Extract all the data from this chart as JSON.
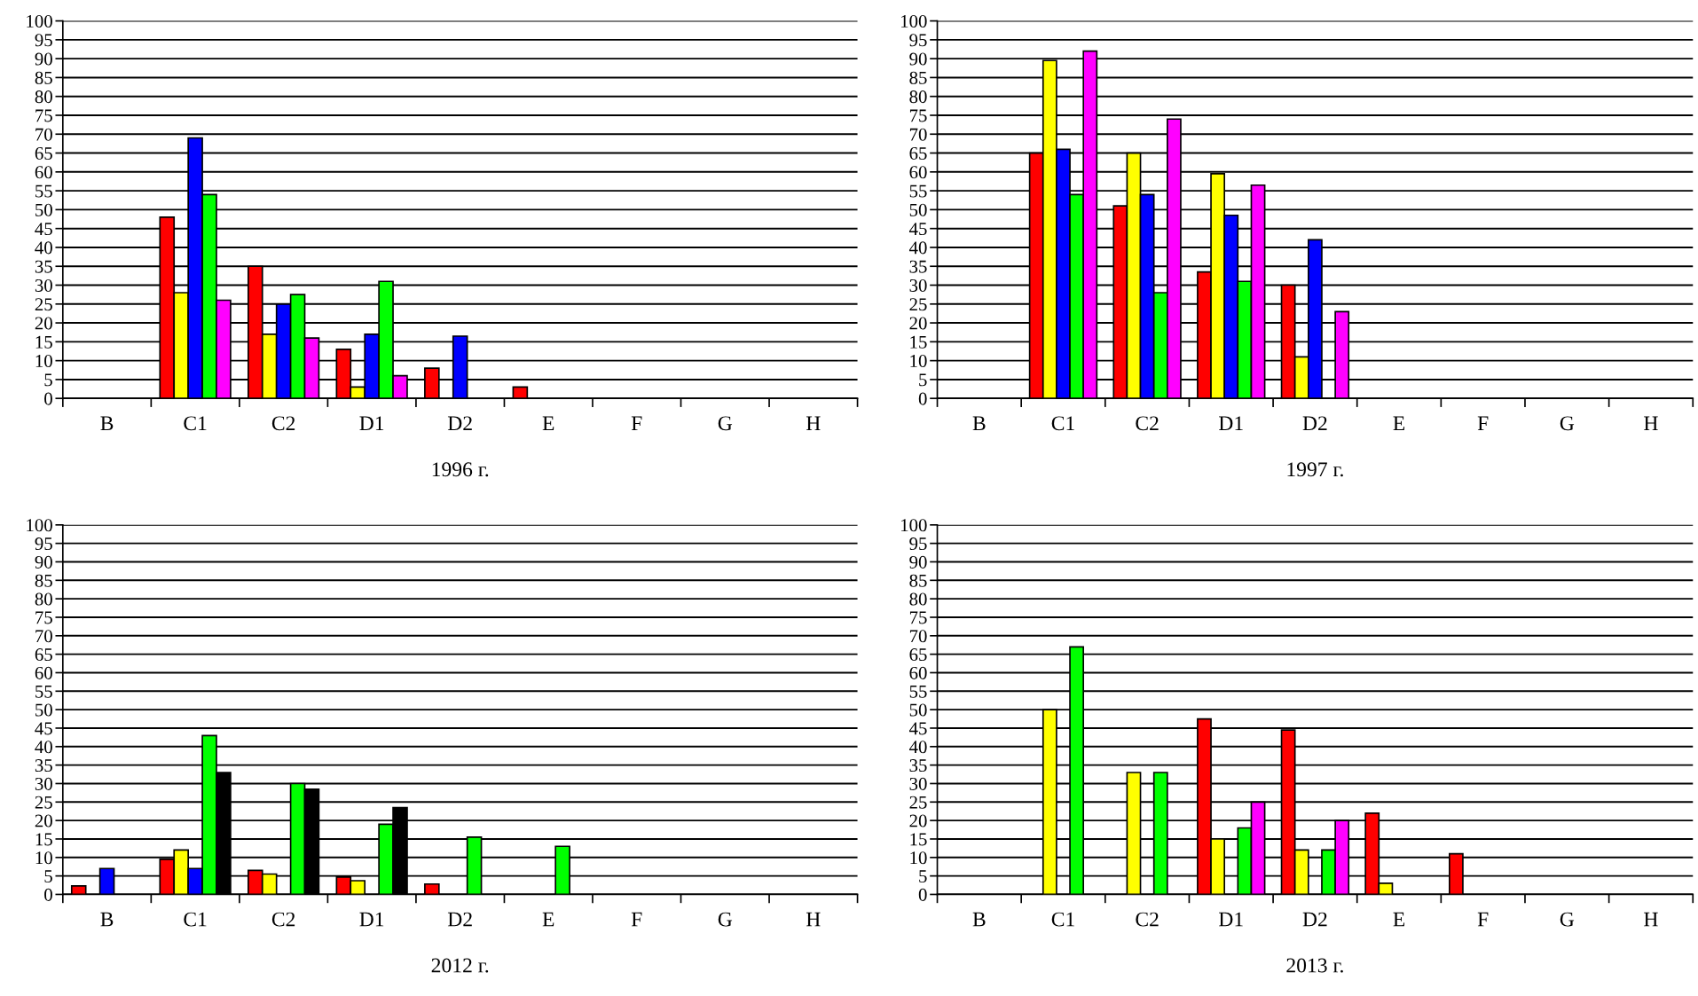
{
  "chart_data": [
    {
      "type": "bar",
      "xlabel": "1996 г.",
      "categories": [
        "B",
        "C1",
        "C2",
        "D1",
        "D2",
        "E",
        "F",
        "G",
        "H"
      ],
      "ylim": [
        0,
        100
      ],
      "yticks": [
        0,
        5,
        10,
        15,
        20,
        25,
        30,
        35,
        40,
        45,
        50,
        55,
        60,
        65,
        70,
        75,
        80,
        85,
        90,
        95,
        100
      ],
      "grid": "y",
      "legend": false,
      "series": [
        {
          "color": "#ff0000",
          "values": [
            null,
            48,
            35,
            13,
            8,
            3,
            null,
            null,
            null
          ]
        },
        {
          "color": "#ffff00",
          "values": [
            null,
            28,
            17,
            3,
            null,
            null,
            null,
            null,
            null
          ]
        },
        {
          "color": "#0000ff",
          "values": [
            null,
            69,
            25,
            17,
            16.5,
            null,
            null,
            null,
            null
          ]
        },
        {
          "color": "#00ff00",
          "values": [
            null,
            54,
            27.5,
            31,
            null,
            null,
            null,
            null,
            null
          ]
        },
        {
          "color": "#ff00ff",
          "values": [
            null,
            26,
            16,
            6,
            null,
            null,
            null,
            null,
            null
          ]
        }
      ]
    },
    {
      "type": "bar",
      "xlabel": "1997 г.",
      "categories": [
        "B",
        "C1",
        "C2",
        "D1",
        "D2",
        "E",
        "F",
        "G",
        "H"
      ],
      "ylim": [
        0,
        100
      ],
      "yticks": [
        0,
        5,
        10,
        15,
        20,
        25,
        30,
        35,
        40,
        45,
        50,
        55,
        60,
        65,
        70,
        75,
        80,
        85,
        90,
        95,
        100
      ],
      "grid": "y",
      "legend": false,
      "series": [
        {
          "color": "#ff0000",
          "values": [
            null,
            65,
            51,
            33.5,
            30,
            null,
            null,
            null,
            null
          ]
        },
        {
          "color": "#ffff00",
          "values": [
            null,
            89.5,
            65,
            59.5,
            11,
            null,
            null,
            null,
            null
          ]
        },
        {
          "color": "#0000ff",
          "values": [
            null,
            66,
            54,
            48.5,
            42,
            null,
            null,
            null,
            null
          ]
        },
        {
          "color": "#00ff00",
          "values": [
            null,
            54,
            28,
            31,
            null,
            null,
            null,
            null,
            null
          ]
        },
        {
          "color": "#ff00ff",
          "values": [
            null,
            92,
            74,
            56.5,
            23,
            null,
            null,
            null,
            null
          ]
        }
      ]
    },
    {
      "type": "bar",
      "xlabel": "2012 г.",
      "categories": [
        "B",
        "C1",
        "C2",
        "D1",
        "D2",
        "E",
        "F",
        "G",
        "H"
      ],
      "ylim": [
        0,
        100
      ],
      "yticks": [
        0,
        5,
        10,
        15,
        20,
        25,
        30,
        35,
        40,
        45,
        50,
        55,
        60,
        65,
        70,
        75,
        80,
        85,
        90,
        95,
        100
      ],
      "grid": "y",
      "legend": false,
      "series": [
        {
          "color": "#ff0000",
          "values": [
            2.3,
            9.5,
            6.5,
            4.7,
            2.8,
            null,
            null,
            null,
            null
          ]
        },
        {
          "color": "#ffff00",
          "values": [
            null,
            12,
            5.5,
            3.7,
            null,
            null,
            null,
            null,
            null
          ]
        },
        {
          "color": "#0000ff",
          "values": [
            7,
            7,
            null,
            null,
            null,
            null,
            null,
            null,
            null
          ]
        },
        {
          "color": "#00ff00",
          "values": [
            null,
            43,
            30,
            19,
            15.5,
            13,
            null,
            null,
            null
          ]
        },
        {
          "color": "#000000",
          "values": [
            null,
            33,
            28.5,
            23.5,
            null,
            null,
            null,
            null,
            null
          ]
        }
      ]
    },
    {
      "type": "bar",
      "xlabel": "2013 г.",
      "categories": [
        "B",
        "C1",
        "C2",
        "D1",
        "D2",
        "E",
        "F",
        "G",
        "H"
      ],
      "ylim": [
        0,
        100
      ],
      "yticks": [
        0,
        5,
        10,
        15,
        20,
        25,
        30,
        35,
        40,
        45,
        50,
        55,
        60,
        65,
        70,
        75,
        80,
        85,
        90,
        95,
        100
      ],
      "grid": "y",
      "legend": false,
      "series": [
        {
          "color": "#ff0000",
          "values": [
            null,
            null,
            null,
            47.5,
            44.5,
            22,
            11,
            null,
            null
          ]
        },
        {
          "color": "#ffff00",
          "values": [
            null,
            50,
            33,
            15,
            12,
            3,
            null,
            null,
            null
          ]
        },
        {
          "color": "#0000ff",
          "values": [
            null,
            null,
            null,
            null,
            null,
            null,
            null,
            null,
            null
          ]
        },
        {
          "color": "#00ff00",
          "values": [
            null,
            67,
            33,
            18,
            12,
            null,
            null,
            null,
            null
          ]
        },
        {
          "color": "#ff00ff",
          "values": [
            null,
            null,
            null,
            25,
            20,
            null,
            null,
            null,
            null
          ]
        }
      ]
    }
  ]
}
